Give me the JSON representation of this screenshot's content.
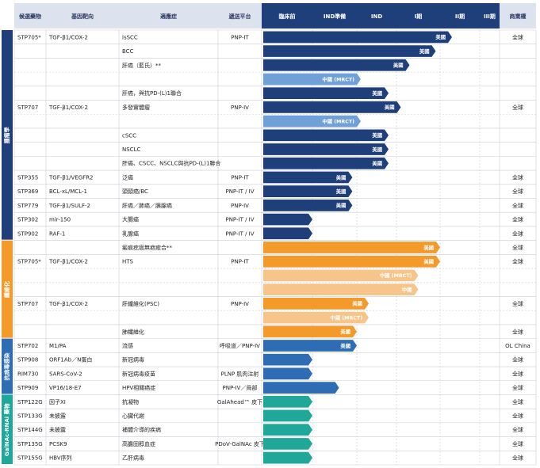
{
  "chart_data": {
    "type": "table",
    "headers": [
      "候選藥物",
      "基因靶向",
      "適應症",
      "遞送平台",
      "臨床前",
      "IND準備",
      "IND",
      "I期",
      "II期",
      "III期",
      "商業權"
    ],
    "stages": [
      "臨床前",
      "IND準備",
      "IND",
      "I期",
      "II期",
      "III期"
    ],
    "sections": [
      {
        "label": "腫瘤學",
        "color": "#1f3f7a"
      },
      {
        "label": "纖維化",
        "color": "#f39a2a"
      },
      {
        "label": "抗病毒感染",
        "color": "#2e6db4"
      },
      {
        "label": "GalNAc-RNAi 藥物",
        "color": "#1fa79a"
      }
    ],
    "rows": [
      {
        "drug": "STP705*",
        "target": "TGF-β1/COX-2",
        "indication": "isSCC",
        "platform": "PNP-IT",
        "region": "美國",
        "progress": 4.3,
        "commercial": "全球",
        "color": "#1f3f7a"
      },
      {
        "drug": "",
        "target": "",
        "indication": "BCC",
        "platform": "",
        "region": "美國",
        "progress": 3.9,
        "commercial": "",
        "color": "#1f3f7a"
      },
      {
        "drug": "",
        "target": "",
        "indication": "肝癌（藍氏）**",
        "platform": "",
        "region": "美國",
        "progress": 3.3,
        "commercial": "",
        "color": "#1f3f7a"
      },
      {
        "drug": "",
        "target": "",
        "indication": "",
        "platform": "",
        "region": "中國 (MRCT)",
        "progress": 2.1,
        "commercial": "",
        "color": "#6fa0d8"
      },
      {
        "drug": "",
        "target": "",
        "indication": "肝癌，與抗PD-(L)1聯合",
        "platform": "",
        "region": "美國",
        "progress": 2.8,
        "commercial": "",
        "color": "#1f3f7a"
      },
      {
        "drug": "STP707",
        "target": "TGF-β1/COX-2",
        "indication": "多發實體瘤",
        "platform": "PNP-IV",
        "region": "美國",
        "progress": 3.1,
        "commercial": "全球",
        "color": "#1f3f7a"
      },
      {
        "drug": "",
        "target": "",
        "indication": "",
        "platform": "",
        "region": "中國 (MRCT)",
        "progress": 2.1,
        "commercial": "",
        "color": "#6fa0d8"
      },
      {
        "drug": "",
        "target": "",
        "indication": "cSCC",
        "platform": "",
        "region": "美國",
        "progress": 2.8,
        "commercial": "",
        "color": "#1f3f7a"
      },
      {
        "drug": "",
        "target": "",
        "indication": "NSCLC",
        "platform": "",
        "region": "美國",
        "progress": 2.8,
        "commercial": "",
        "color": "#1f3f7a"
      },
      {
        "drug": "",
        "target": "",
        "indication": "肝癌、CSCC、NSCLC與抗PD-(L)1聯合",
        "platform": "",
        "region": "美國",
        "progress": 2.8,
        "commercial": "",
        "color": "#1f3f7a"
      },
      {
        "drug": "STP355",
        "target": "TGF-β1/VEGFR2",
        "indication": "泛癌",
        "platform": "PNP-IT",
        "region": "美國",
        "progress": 1.9,
        "commercial": "全球",
        "color": "#1f3f7a"
      },
      {
        "drug": "STP369",
        "target": "BCL-xL/MCL-1",
        "indication": "頭頸癌/BC",
        "platform": "PNP-IT / IV",
        "region": "美國",
        "progress": 1.9,
        "commercial": "全球",
        "color": "#1f3f7a"
      },
      {
        "drug": "STP779",
        "target": "TGF-β1/SULF-2",
        "indication": "肝癌／肺癌／胰腺癌",
        "platform": "PNP-IV",
        "region": "美國",
        "progress": 1.9,
        "commercial": "全球",
        "color": "#1f3f7a"
      },
      {
        "drug": "STP302",
        "target": "mir-150",
        "indication": "大腸癌",
        "platform": "PNP-IT / IV",
        "region": "",
        "progress": 1.0,
        "commercial": "全球",
        "color": "#1f3f7a"
      },
      {
        "drug": "STP902",
        "target": "RAF-1",
        "indication": "乳腺癌",
        "platform": "PNP-IT / IV",
        "region": "",
        "progress": 1.0,
        "commercial": "全球",
        "color": "#1f3f7a"
      },
      {
        "drug": "",
        "target": "",
        "indication": "瘢痕疙瘩無疤癒合**",
        "platform": "",
        "region": "美國",
        "progress": 4.0,
        "commercial": "全球",
        "color": "#f39a2a"
      },
      {
        "drug": "STP705*",
        "target": "TGF-β1/COX-2",
        "indication": "HTS",
        "platform": "PNP-IT",
        "region": "美國",
        "progress": 4.0,
        "commercial": "全球",
        "color": "#f39a2a"
      },
      {
        "drug": "",
        "target": "",
        "indication": "",
        "platform": "",
        "region": "中國 (MRCT)",
        "progress": 3.5,
        "commercial": "",
        "color": "#f7c48a"
      },
      {
        "drug": "",
        "target": "",
        "indication": "",
        "platform": "",
        "region": "中國",
        "progress": 3.5,
        "commercial": "",
        "color": "#f7c48a"
      },
      {
        "drug": "STP707",
        "target": "TGF-β1/COX-2",
        "indication": "肝纖維化(PSC)",
        "platform": "PNP-IV",
        "region": "美國",
        "progress": 2.3,
        "commercial": "全球",
        "color": "#f39a2a"
      },
      {
        "drug": "",
        "target": "",
        "indication": "",
        "platform": "",
        "region": "中國 (MRCT)",
        "progress": 2.3,
        "commercial": "",
        "color": "#f7c48a"
      },
      {
        "drug": "",
        "target": "",
        "indication": "肺纖維化",
        "platform": "",
        "region": "美國",
        "progress": 2.0,
        "commercial": "全球",
        "color": "#f39a2a"
      },
      {
        "drug": "STP702",
        "target": "M1/PA",
        "indication": "流感",
        "platform": "呼吸道／PNP-IV",
        "region": "美國",
        "progress": 2.0,
        "commercial": "OL China",
        "color": "#2e6db4"
      },
      {
        "drug": "STP908",
        "target": "ORF1Ab／N蛋白",
        "indication": "新冠病毒",
        "platform": "",
        "region": "",
        "progress": 1.0,
        "commercial": "全球",
        "color": "#2e6db4"
      },
      {
        "drug": "RIM730",
        "target": "SARS-CoV-2",
        "indication": "新冠病毒疫苗",
        "platform": "PLNP 肌肉注射",
        "region": "",
        "progress": 1.0,
        "commercial": "全球",
        "color": "#2e6db4"
      },
      {
        "drug": "STP909",
        "target": "VP16/18-E7",
        "indication": "HPV相關癌症",
        "platform": "PNP-IV／局部",
        "region": "",
        "progress": 1.6,
        "commercial": "全球",
        "color": "#2e6db4"
      },
      {
        "drug": "STP122G",
        "target": "因子XI",
        "indication": "抗凝物",
        "platform": "GalAhead™ 皮下",
        "region": "",
        "progress": 1.0,
        "commercial": "全球",
        "color": "#1fa79a"
      },
      {
        "drug": "STP133G",
        "target": "未披露",
        "indication": "心臟代謝",
        "platform": "",
        "region": "",
        "progress": 1.0,
        "commercial": "全球",
        "color": "#1fa79a"
      },
      {
        "drug": "STP144G",
        "target": "未披露",
        "indication": "補體介導的疾病",
        "platform": "",
        "region": "",
        "progress": 1.0,
        "commercial": "全球",
        "color": "#1fa79a"
      },
      {
        "drug": "STP135G",
        "target": "PCSK9",
        "indication": "高膽固醇血症",
        "platform": "PDoV-GalNAc 皮下",
        "region": "",
        "progress": 1.0,
        "commercial": "全球",
        "color": "#1fa79a"
      },
      {
        "drug": "STP155G",
        "target": "HBV序列",
        "indication": "乙肝病毒",
        "platform": "",
        "region": "",
        "progress": 1.0,
        "commercial": "全球",
        "color": "#1fa79a"
      }
    ]
  },
  "colors": {
    "header_text": "#2b3a63",
    "grid": "#c9ced8",
    "stage_header_bg": "#1f3f7a",
    "header_bg": "#dde3ee"
  }
}
